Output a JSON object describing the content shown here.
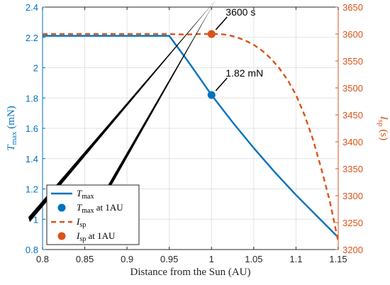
{
  "chart_data": {
    "type": "line",
    "x_axis": {
      "label": "Distance from the Sun (AU)",
      "range": [
        0.8,
        1.15
      ],
      "ticks": [
        "0.8",
        "0.85",
        "0.9",
        "0.95",
        "1",
        "1.05",
        "1.1",
        "1.15"
      ],
      "color": "#000000"
    },
    "y_left": {
      "label_main": "T",
      "label_sub": "max",
      "label_tail": " (mN)",
      "range": [
        0.8,
        2.4
      ],
      "ticks": [
        "0.8",
        "1",
        "1.2",
        "1.4",
        "1.6",
        "1.8",
        "2",
        "2.2",
        "2.4"
      ],
      "color": "#0072BD"
    },
    "y_right": {
      "label_main": "I",
      "label_sub": "sp",
      "label_tail": " (s)",
      "range": [
        3200,
        3650
      ],
      "ticks": [
        "3200",
        "3250",
        "3300",
        "3350",
        "3400",
        "3450",
        "3500",
        "3550",
        "3600",
        "3650"
      ],
      "color": "#D95319"
    },
    "grid": true,
    "series": [
      {
        "name_main": "T",
        "name_sub": "max",
        "style": "solid",
        "color": "#0072BD",
        "axis": "left",
        "x": [
          0.8,
          0.95,
          0.975,
          1.0,
          1.025,
          1.05,
          1.075,
          1.1,
          1.125,
          1.15
        ],
        "y": [
          2.21,
          2.21,
          2.02,
          1.82,
          1.64,
          1.47,
          1.31,
          1.16,
          1.02,
          0.88
        ]
      },
      {
        "name_main": "I",
        "name_sub": "sp",
        "style": "dashed",
        "color": "#D95319",
        "axis": "right",
        "x": [
          0.8,
          0.95,
          0.97,
          0.985,
          1.0,
          1.01,
          1.02,
          1.03,
          1.04,
          1.05,
          1.06,
          1.07,
          1.08,
          1.09,
          1.1,
          1.11,
          1.12,
          1.13,
          1.14,
          1.15
        ],
        "y": [
          3600,
          3600,
          3599,
          3600,
          3600,
          3600,
          3598,
          3594,
          3588,
          3580,
          3569,
          3555,
          3537,
          3515,
          3487,
          3450,
          3405,
          3350,
          3290,
          3215
        ]
      }
    ],
    "markers": [
      {
        "name_main": "T",
        "name_sub": "max",
        "name_tail": " at 1AU",
        "axis": "left",
        "x": 1.0,
        "y": 1.82,
        "color": "#0072BD",
        "annotation": "1.82 mN"
      },
      {
        "name_main": "I",
        "name_sub": "sp",
        "name_tail": " at 1AU",
        "axis": "right",
        "x": 1.0,
        "y": 3600,
        "color": "#D95319",
        "annotation": "3600 s"
      }
    ],
    "legend_position": "bottom-left"
  }
}
